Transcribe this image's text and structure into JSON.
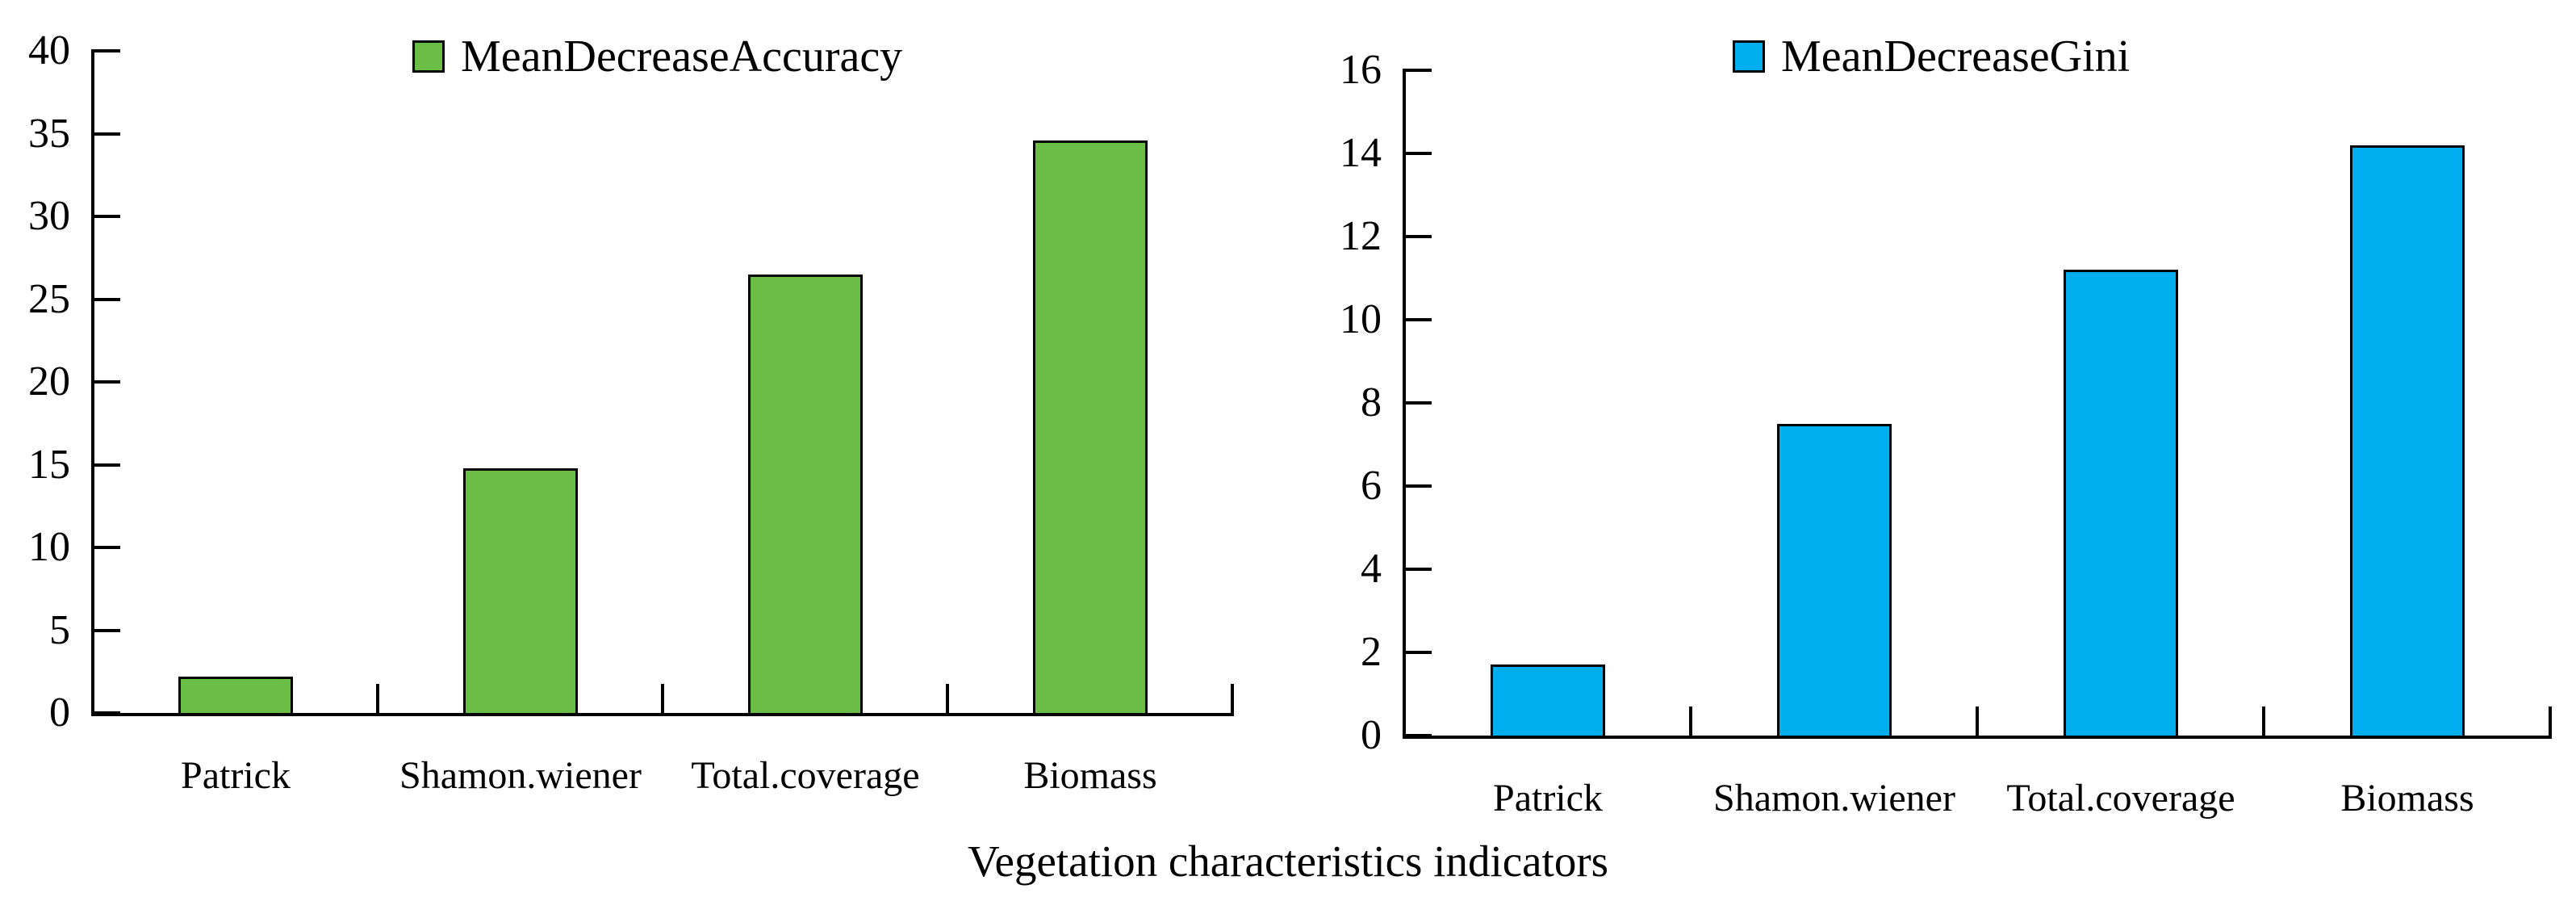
{
  "figure": {
    "xlabel": "Vegetation characteristics indicators",
    "background_color": "#ffffff",
    "text_color": "#000000"
  },
  "chart_data": [
    {
      "type": "bar",
      "legend": "MeanDecreaseAccuracy",
      "legend_position": "top-center",
      "categories": [
        "Patrick",
        "Shamon.wiener",
        "Total.coverage",
        "Biomass"
      ],
      "values": [
        2.2,
        14.8,
        26.5,
        34.6
      ],
      "ylim": [
        0,
        40
      ],
      "yticks": [
        "0",
        "5",
        "10",
        "15",
        "20",
        "25",
        "30",
        "35",
        "40"
      ],
      "ytick_values": [
        0,
        5,
        10,
        15,
        20,
        25,
        30,
        35,
        40
      ],
      "bar_color": "#6ABE45",
      "bar_border_color": "#000000",
      "axis_color": "#000000",
      "grid": false,
      "xlabel": "",
      "ylabel": ""
    },
    {
      "type": "bar",
      "legend": "MeanDecreaseGini",
      "legend_position": "top-center",
      "categories": [
        "Patrick",
        "Shamon.wiener",
        "Total.coverage",
        "Biomass"
      ],
      "values": [
        1.7,
        7.5,
        11.2,
        14.2
      ],
      "ylim": [
        0,
        16
      ],
      "yticks": [
        "0",
        "2",
        "4",
        "6",
        "8",
        "10",
        "12",
        "14",
        "16"
      ],
      "ytick_values": [
        0,
        2,
        4,
        6,
        8,
        10,
        12,
        14,
        16
      ],
      "bar_color": "#00AEEF",
      "bar_border_color": "#000000",
      "axis_color": "#000000",
      "grid": false,
      "xlabel": "",
      "ylabel": ""
    }
  ]
}
